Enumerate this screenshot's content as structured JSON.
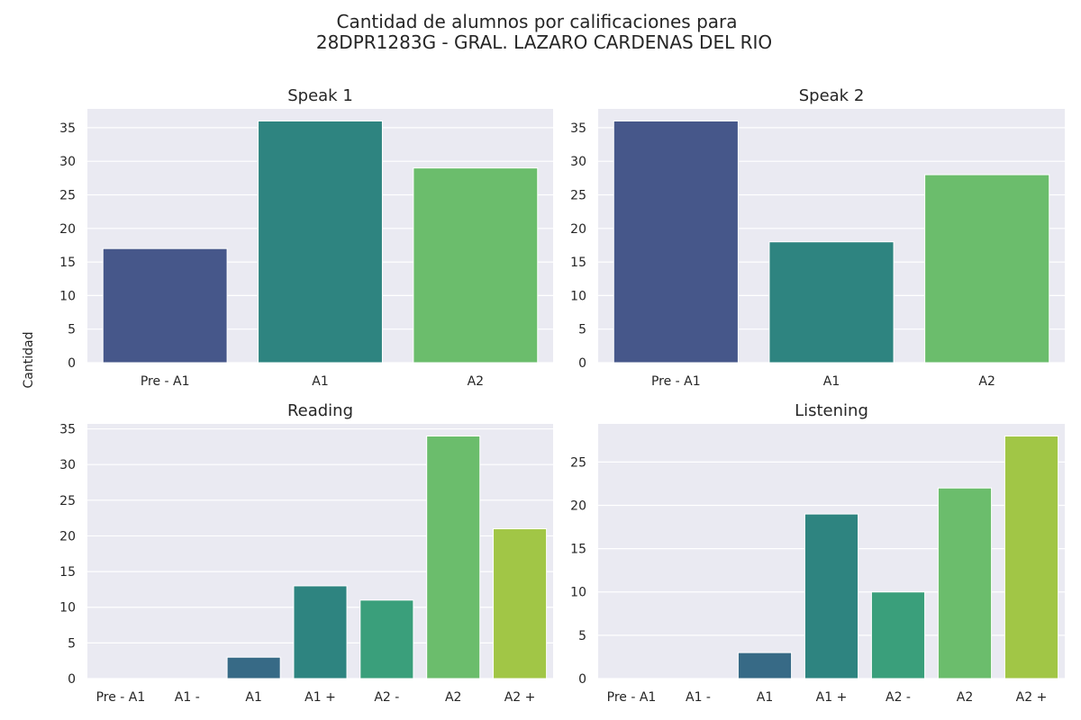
{
  "figure": {
    "title_line1": "Cantidad de alumnos por calificaciones para",
    "title_line2": "28DPR1283G - GRAL. LAZARO CARDENAS DEL RIO",
    "ylabel": "Cantidad"
  },
  "chart_data": [
    {
      "type": "bar",
      "title": "Speak 1",
      "categories": [
        "Pre - A1",
        "A1",
        "A2"
      ],
      "values": [
        17,
        36,
        29
      ],
      "colors": [
        "#46578a",
        "#2e8480",
        "#6bbd6c"
      ],
      "ylim": [
        0,
        37.8
      ],
      "yticks": [
        0,
        5,
        10,
        15,
        20,
        25,
        30,
        35
      ],
      "xlabel": "",
      "ylabel": "",
      "grid": true
    },
    {
      "type": "bar",
      "title": "Speak 2",
      "categories": [
        "Pre - A1",
        "A1",
        "A2"
      ],
      "values": [
        36,
        18,
        28
      ],
      "colors": [
        "#46578a",
        "#2e8480",
        "#6bbd6c"
      ],
      "ylim": [
        0,
        37.8
      ],
      "yticks": [
        0,
        5,
        10,
        15,
        20,
        25,
        30,
        35
      ],
      "xlabel": "",
      "ylabel": "",
      "grid": true
    },
    {
      "type": "bar",
      "title": "Reading",
      "categories": [
        "Pre - A1",
        "A1 -",
        "A1",
        "A1 +",
        "A2 -",
        "A2",
        "A2 +"
      ],
      "values": [
        0,
        0,
        3,
        13,
        11,
        34,
        21
      ],
      "colors": [
        "#46337e",
        "#365c8d",
        "#376a86",
        "#2e8480",
        "#3a9f7b",
        "#6bbd6c",
        "#a1c646"
      ],
      "ylim": [
        0,
        35.7
      ],
      "yticks": [
        0,
        5,
        10,
        15,
        20,
        25,
        30,
        35
      ],
      "xlabel": "",
      "ylabel": "",
      "grid": true
    },
    {
      "type": "bar",
      "title": "Listening",
      "categories": [
        "Pre - A1",
        "A1 -",
        "A1",
        "A1 +",
        "A2 -",
        "A2",
        "A2 +"
      ],
      "values": [
        0,
        0,
        3,
        19,
        10,
        22,
        28
      ],
      "colors": [
        "#46337e",
        "#365c8d",
        "#376a86",
        "#2e8480",
        "#3a9f7b",
        "#6bbd6c",
        "#a1c646"
      ],
      "ylim": [
        0,
        29.4
      ],
      "yticks": [
        0,
        5,
        10,
        15,
        20,
        25
      ],
      "xlabel": "",
      "ylabel": "",
      "grid": true
    }
  ]
}
